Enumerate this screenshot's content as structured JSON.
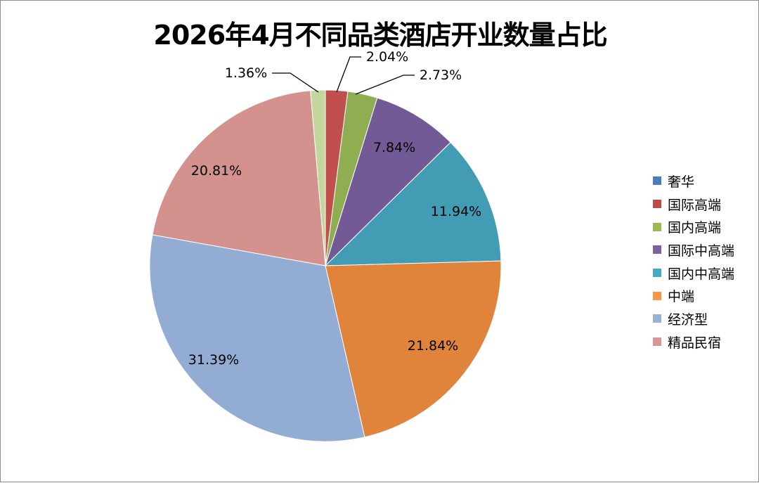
{
  "chart_data": {
    "type": "pie",
    "title": "2026年4月不同品类酒店开业数量占比",
    "categories": [
      "奢华",
      "国际高端",
      "国内高端",
      "国际中高端",
      "国内中高端",
      "中端",
      "经济型",
      "精品民宿"
    ],
    "values": [
      1.36,
      2.04,
      2.73,
      7.84,
      11.94,
      21.84,
      31.39,
      20.81
    ],
    "data_labels": [
      "1.36%",
      "2.04%",
      "2.73%",
      "7.84%",
      "11.94%",
      "21.84%",
      "31.39%",
      "20.81%"
    ],
    "colors": [
      "#4a7dbb",
      "#be4b48",
      "#98b954",
      "#7d60a0",
      "#46aac5",
      "#f79646",
      "#95b3d7",
      "#d99694"
    ],
    "slice_colors": [
      "#c3d69b",
      "#c0504d",
      "#8fae52",
      "#725a96",
      "#419cb4",
      "#e0843b",
      "#93acd3",
      "#d4928f"
    ],
    "legend_position": "right",
    "start_angle_deg": 0,
    "direction": "clockwise"
  }
}
